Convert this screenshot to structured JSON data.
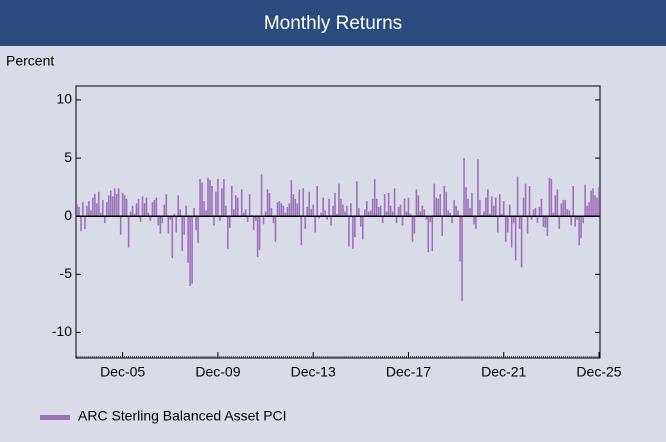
{
  "chart_data": {
    "type": "bar",
    "title": "Monthly Returns",
    "ylabel": "Percent",
    "categories": [
      null,
      null,
      null,
      null,
      null,
      null,
      null,
      null,
      null,
      null,
      null,
      null,
      null,
      null,
      null,
      null,
      null,
      null,
      null,
      null,
      null,
      null,
      null,
      "Dec-05",
      null,
      null,
      null,
      null,
      null,
      null,
      null,
      null,
      null,
      null,
      null,
      null,
      null,
      null,
      null,
      null,
      null,
      null,
      null,
      null,
      null,
      null,
      null,
      null,
      null,
      null,
      null,
      null,
      null,
      null,
      null,
      null,
      null,
      null,
      null,
      null,
      null,
      null,
      null,
      null,
      null,
      null,
      null,
      null,
      null,
      null,
      null,
      "Dec-09",
      null,
      null,
      null,
      null,
      null,
      null,
      null,
      null,
      null,
      null,
      null,
      null,
      null,
      null,
      null,
      null,
      null,
      null,
      null,
      null,
      null,
      null,
      null,
      null,
      null,
      null,
      null,
      null,
      null,
      null,
      null,
      null,
      null,
      null,
      null,
      null,
      null,
      null,
      null,
      null,
      null,
      null,
      null,
      null,
      null,
      null,
      null,
      "Dec-13",
      null,
      null,
      null,
      null,
      null,
      null,
      null,
      null,
      null,
      null,
      null,
      null,
      null,
      null,
      null,
      null,
      null,
      null,
      null,
      null,
      null,
      null,
      null,
      null,
      null,
      null,
      null,
      null,
      null,
      null,
      null,
      null,
      null,
      null,
      null,
      null,
      null,
      null,
      null,
      null,
      null,
      null,
      null,
      null,
      null,
      null,
      null,
      "Dec-17",
      null,
      null,
      null,
      null,
      null,
      null,
      null,
      null,
      null,
      null,
      null,
      null,
      null,
      null,
      null,
      null,
      null,
      null,
      null,
      null,
      null,
      null,
      null,
      null,
      null,
      null,
      null,
      null,
      null,
      null,
      null,
      null,
      null,
      null,
      null,
      null,
      null,
      null,
      null,
      null,
      null,
      null,
      null,
      null,
      null,
      null,
      null,
      "Dec-21",
      null,
      null,
      null,
      null,
      null,
      null,
      null,
      null,
      null,
      null,
      null,
      null,
      null,
      null,
      null,
      null,
      null,
      null,
      null,
      null,
      null,
      null,
      null,
      null,
      null,
      null,
      null,
      null,
      null,
      null,
      null,
      null,
      null,
      null,
      null,
      null,
      null,
      null,
      null,
      null,
      null,
      null,
      null,
      null,
      null,
      null,
      null,
      "Dec-25"
    ],
    "series": [
      {
        "name": "ARC Sterling Balanced Asset PCI",
        "color": "#9b72b8",
        "values": [
          1.0,
          0.8,
          -1.3,
          1.2,
          -1.1,
          0.9,
          1.3,
          0.5,
          1.6,
          1.9,
          1.1,
          2.1,
          0.3,
          1.4,
          -0.6,
          1.2,
          1.8,
          2.2,
          1.7,
          2.4,
          1.9,
          2.4,
          -1.6,
          2.0,
          1.8,
          1.5,
          -2.7,
          0.4,
          0.9,
          0.2,
          1.1,
          1.5,
          -0.5,
          1.7,
          1.1,
          1.6,
          0.3,
          -0.4,
          1.2,
          1.4,
          1.6,
          -0.8,
          -1.5,
          -0.6,
          1.0,
          1.9,
          -1.5,
          -0.3,
          -3.6,
          0.2,
          -1.4,
          1.8,
          0.6,
          -3.0,
          -1.6,
          0.9,
          -4.0,
          -6.0,
          -5.8,
          0.7,
          -1.2,
          -2.3,
          3.2,
          2.9,
          1.3,
          0.5,
          3.3,
          3.1,
          2.6,
          -0.8,
          2.1,
          3.2,
          -0.4,
          2.4,
          3.2,
          0.9,
          -2.8,
          -1.0,
          2.6,
          0.6,
          1.8,
          1.6,
          -0.1,
          2.3,
          0.3,
          0.6,
          -0.5,
          1.9,
          0.1,
          -1.2,
          -0.4,
          -3.5,
          -2.9,
          3.6,
          -0.7,
          0.4,
          2.3,
          2.0,
          0.7,
          -0.6,
          -2.2,
          1.2,
          1.3,
          1.1,
          0.9,
          0.3,
          0.8,
          1.1,
          3.1,
          1.9,
          1.5,
          1.1,
          2.3,
          -2.5,
          2.4,
          -1.1,
          0.8,
          2.1,
          0.6,
          1.0,
          -1.4,
          2.6,
          -0.2,
          0.3,
          1.6,
          0.5,
          -0.3,
          1.5,
          -0.8,
          0.9,
          2.0,
          0.2,
          2.8,
          1.5,
          1.0,
          0.4,
          0.9,
          -2.6,
          1.1,
          -2.8,
          -1.8,
          3.0,
          0.7,
          -0.9,
          -2.0,
          0.6,
          1.3,
          0.4,
          0.5,
          1.5,
          3.2,
          1.5,
          0.8,
          0.9,
          -0.6,
          1.9,
          0.4,
          2.0,
          0.9,
          0.4,
          2.4,
          -0.6,
          0.8,
          1.0,
          -0.8,
          1.5,
          0.4,
          1.6,
          0.2,
          -2.2,
          -1.5,
          2.3,
          1.8,
          0.4,
          0.9,
          0.6,
          -0.3,
          -3.1,
          -0.5,
          -3.0,
          2.8,
          1.6,
          1.5,
          1.9,
          -1.7,
          2.6,
          2.1,
          0.5,
          0.3,
          -0.6,
          1.4,
          0.9,
          0.5,
          -3.9,
          -7.3,
          5.0,
          2.5,
          1.5,
          0.7,
          2.0,
          -0.7,
          -1.1,
          4.9,
          1.4,
          0.1,
          0.4,
          1.6,
          2.3,
          0.2,
          1.7,
          0.9,
          1.6,
          -1.4,
          1.9,
          0.2,
          1.3,
          -2.2,
          -1.4,
          1.0,
          -2.7,
          -0.6,
          -3.8,
          3.4,
          -1.1,
          -4.4,
          1.6,
          2.8,
          -1.5,
          2.6,
          -0.3,
          0.6,
          0.7,
          -0.6,
          0.8,
          1.5,
          -0.9,
          -1.0,
          -1.7,
          3.3,
          3.2,
          0.3,
          1.8,
          2.3,
          -1.1,
          1.1,
          1.4,
          1.4,
          0.6,
          0.5,
          -0.8,
          2.6,
          -0.9,
          -0.3,
          -2.5,
          -1.9,
          -0.6,
          2.7,
          0.9,
          1.2,
          2.2,
          2.4,
          1.8,
          1.6,
          2.5
        ]
      }
    ],
    "ylim": [
      -12.2,
      11.2
    ],
    "yticks": [
      -10,
      -5,
      0,
      5,
      10
    ]
  }
}
